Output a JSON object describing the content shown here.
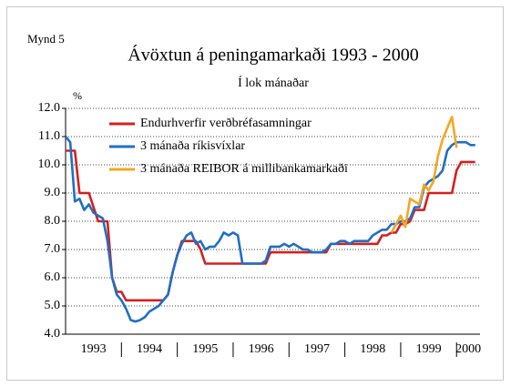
{
  "chart_data": {
    "type": "line",
    "figure_label": "Mynd 5",
    "title": "Ávöxtun á peningamarkaði 1993 - 2000",
    "subtitle": "Í lok mánaðar",
    "y_label": "%",
    "categories": [
      "1993",
      "1994",
      "1995",
      "1996",
      "1997",
      "1998",
      "1999",
      "2000"
    ],
    "x": [
      1993,
      1993.083,
      1993.167,
      1993.25,
      1993.333,
      1993.417,
      1993.5,
      1993.583,
      1993.667,
      1993.75,
      1993.833,
      1993.917,
      1994,
      1994.083,
      1994.167,
      1994.25,
      1994.333,
      1994.417,
      1994.5,
      1994.583,
      1994.667,
      1994.75,
      1994.833,
      1994.917,
      1995,
      1995.083,
      1995.167,
      1995.25,
      1995.333,
      1995.417,
      1995.5,
      1995.583,
      1995.667,
      1995.75,
      1995.833,
      1995.917,
      1996,
      1996.083,
      1996.167,
      1996.25,
      1996.333,
      1996.417,
      1996.5,
      1996.583,
      1996.667,
      1996.75,
      1996.833,
      1996.917,
      1997,
      1997.083,
      1997.167,
      1997.25,
      1997.333,
      1997.417,
      1997.5,
      1997.583,
      1997.667,
      1997.75,
      1997.833,
      1997.917,
      1998,
      1998.083,
      1998.167,
      1998.25,
      1998.333,
      1998.417,
      1998.5,
      1998.583,
      1998.667,
      1998.75,
      1998.833,
      1998.917,
      1999,
      1999.083,
      1999.167,
      1999.25,
      1999.333,
      1999.417,
      1999.5,
      1999.583,
      1999.667,
      1999.75,
      1999.833,
      1999.917,
      2000,
      2000.083,
      2000.167,
      2000.25,
      2000.333
    ],
    "series": [
      {
        "name": "Endurhverfir verðbréfasamningar",
        "color": "#d42020",
        "values": [
          10.5,
          10.5,
          10.5,
          9.0,
          9.0,
          9.0,
          8.5,
          8.0,
          8.0,
          8.0,
          6.0,
          5.5,
          5.5,
          5.2,
          5.2,
          5.2,
          5.2,
          5.2,
          5.2,
          5.2,
          5.2,
          5.2,
          5.4,
          6.2,
          6.8,
          7.3,
          7.3,
          7.3,
          7.3,
          7.0,
          6.5,
          6.5,
          6.5,
          6.5,
          6.5,
          6.5,
          6.5,
          6.5,
          6.5,
          6.5,
          6.5,
          6.5,
          6.5,
          6.5,
          6.9,
          6.9,
          6.9,
          6.9,
          6.9,
          6.9,
          6.9,
          6.9,
          6.9,
          6.9,
          6.9,
          6.9,
          6.9,
          7.2,
          7.2,
          7.2,
          7.2,
          7.2,
          7.2,
          7.2,
          7.2,
          7.2,
          7.2,
          7.2,
          7.5,
          7.5,
          7.6,
          7.6,
          7.9,
          7.9,
          8.0,
          8.4,
          8.4,
          8.4,
          9.0,
          9.0,
          9.0,
          9.0,
          9.0,
          9.0,
          9.8,
          10.1,
          10.1,
          10.1,
          10.1
        ]
      },
      {
        "name": "3 mánaða ríkisvíxlar",
        "color": "#1f6fc4",
        "values": [
          11.0,
          10.8,
          8.7,
          8.8,
          8.4,
          8.6,
          8.3,
          8.2,
          8.1,
          7.3,
          6.0,
          5.4,
          5.2,
          4.9,
          4.5,
          4.45,
          4.5,
          4.6,
          4.8,
          4.9,
          5.0,
          5.2,
          5.4,
          6.2,
          6.8,
          7.2,
          7.5,
          7.6,
          7.2,
          7.3,
          7.0,
          7.1,
          7.1,
          7.3,
          7.6,
          7.5,
          7.6,
          7.5,
          6.5,
          6.5,
          6.5,
          6.5,
          6.5,
          6.6,
          7.1,
          7.1,
          7.1,
          7.2,
          7.1,
          7.2,
          7.1,
          7.0,
          7.0,
          6.9,
          6.9,
          6.9,
          7.0,
          7.2,
          7.2,
          7.3,
          7.3,
          7.2,
          7.3,
          7.3,
          7.3,
          7.3,
          7.5,
          7.6,
          7.7,
          7.7,
          7.9,
          7.9,
          8.0,
          8.0,
          8.1,
          8.5,
          8.5,
          9.2,
          9.4,
          9.5,
          9.6,
          9.8,
          10.5,
          10.7,
          10.8,
          10.8,
          10.8,
          10.7,
          10.7
        ]
      },
      {
        "name": "3 mánaða REIBOR á millibankamarkaði",
        "color": "#f5a623",
        "values": [
          null,
          null,
          null,
          null,
          null,
          null,
          null,
          null,
          null,
          null,
          null,
          null,
          null,
          null,
          null,
          null,
          null,
          null,
          null,
          null,
          null,
          null,
          null,
          null,
          null,
          null,
          null,
          null,
          null,
          null,
          null,
          null,
          null,
          null,
          null,
          null,
          null,
          null,
          null,
          null,
          null,
          null,
          null,
          null,
          null,
          null,
          null,
          null,
          null,
          null,
          null,
          null,
          null,
          null,
          null,
          null,
          null,
          null,
          null,
          null,
          null,
          null,
          null,
          null,
          null,
          null,
          null,
          null,
          null,
          null,
          7.6,
          7.9,
          8.2,
          7.8,
          8.8,
          8.7,
          8.6,
          9.3,
          9.1,
          9.4,
          10.3,
          10.9,
          11.3,
          11.7,
          10.6,
          null,
          null,
          null,
          null
        ]
      }
    ],
    "xlim": [
      1993,
      2000.42
    ],
    "xticks": [
      1994,
      1995,
      1996,
      1997,
      1998,
      1999,
      2000
    ],
    "ylim": [
      4,
      12
    ],
    "yticks": [
      {
        "value": 4,
        "label": "4.0"
      },
      {
        "value": 5,
        "label": "5.0"
      },
      {
        "value": 6,
        "label": "6.0"
      },
      {
        "value": 7,
        "label": "7.0"
      },
      {
        "value": 8,
        "label": "8.0"
      },
      {
        "value": 9,
        "label": "9.0"
      },
      {
        "value": 10,
        "label": "10.0"
      },
      {
        "value": 11,
        "label": "11.0"
      },
      {
        "value": 12,
        "label": "12.0"
      }
    ],
    "grid": true,
    "legend": "upper left"
  }
}
